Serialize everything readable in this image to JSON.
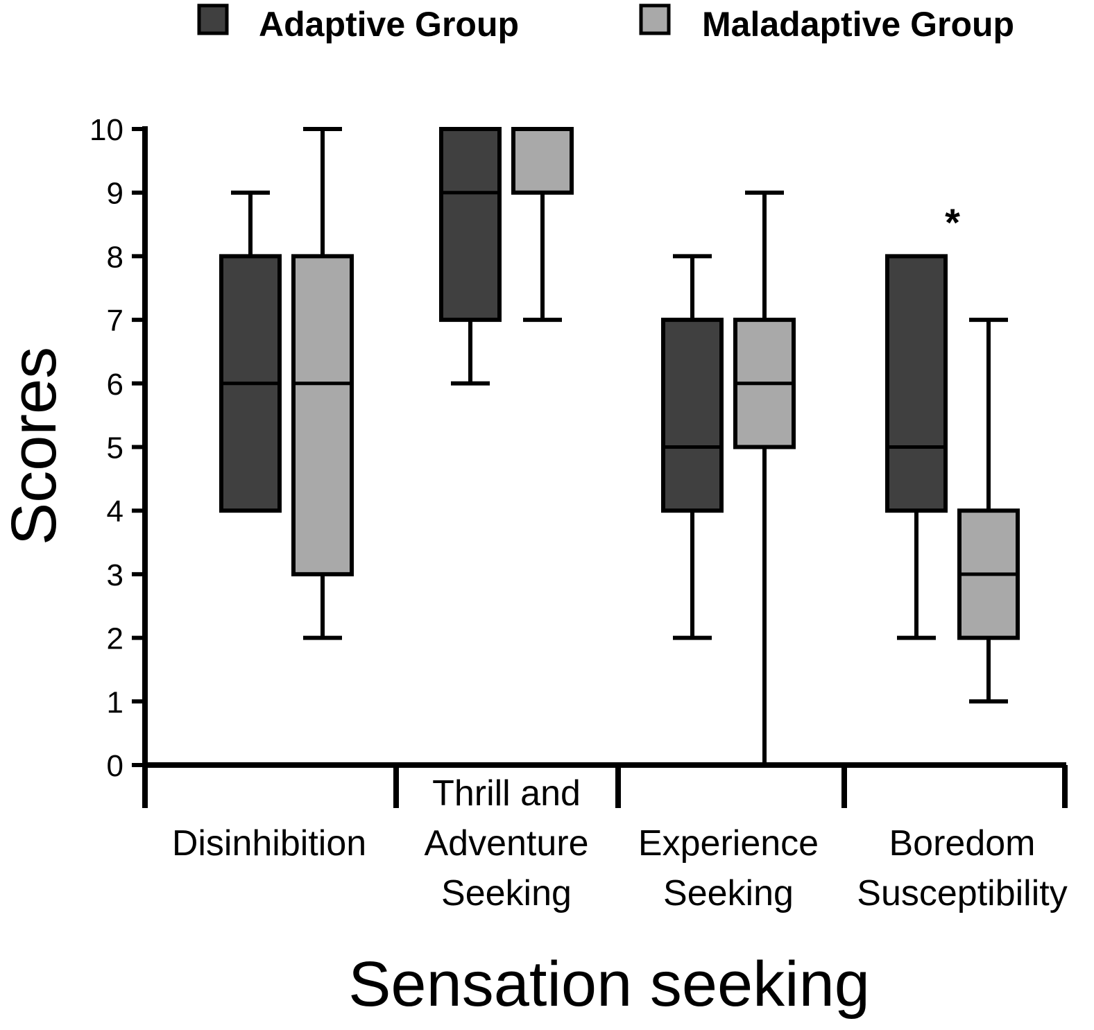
{
  "chart_data": {
    "type": "boxplot",
    "title": "",
    "xlabel": "Sensation seeking",
    "ylabel": "Scores",
    "ylim": [
      0,
      10
    ],
    "yticks": [
      "0",
      "1",
      "2",
      "3",
      "4",
      "5",
      "6",
      "7",
      "8",
      "9",
      "10"
    ],
    "grid": false,
    "legend_position": "top",
    "significance_marker": "*",
    "categories": [
      {
        "lines": [
          "Disinhibition"
        ]
      },
      {
        "lines": [
          "Thrill and",
          "Adventure",
          "Seeking"
        ]
      },
      {
        "lines": [
          "Experience",
          "Seeking"
        ]
      },
      {
        "lines": [
          "Boredom",
          "Susceptibility"
        ]
      }
    ],
    "series": [
      {
        "name": "Adaptive Group",
        "color": "#404040",
        "boxes": [
          {
            "min": 4,
            "q1": 4,
            "median": 6,
            "q3": 8,
            "max": 9
          },
          {
            "min": 6,
            "q1": 7,
            "median": 9,
            "q3": 10,
            "max": 10
          },
          {
            "min": 2,
            "q1": 4,
            "median": 5,
            "q3": 7,
            "max": 8
          },
          {
            "min": 2,
            "q1": 4,
            "median": 5,
            "q3": 8,
            "max": 8
          }
        ]
      },
      {
        "name": "Maladaptive Group",
        "color": "#a9a9a9",
        "boxes": [
          {
            "min": 2,
            "q1": 3,
            "median": 6,
            "q3": 8,
            "max": 10
          },
          {
            "min": 7,
            "q1": 9,
            "median": 10,
            "q3": 10,
            "max": 10
          },
          {
            "min": 0,
            "q1": 5,
            "median": 6,
            "q3": 7,
            "max": 9
          },
          {
            "min": 1,
            "q1": 2,
            "median": 3,
            "q3": 4,
            "max": 7
          }
        ]
      }
    ],
    "significant_category_index": 3
  }
}
